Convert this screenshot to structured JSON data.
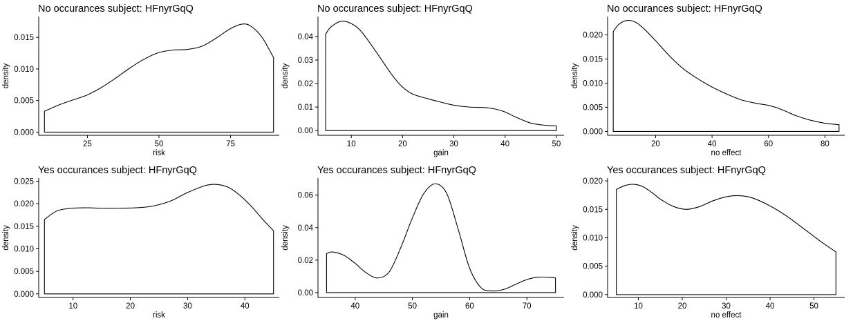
{
  "chart_data": [
    {
      "type": "area",
      "title": "No occurances subject:  HFnyrGqQ",
      "xlabel": "risk",
      "ylabel": "density",
      "xlim": [
        8,
        92
      ],
      "ylim": [
        -0.0005,
        0.0183
      ],
      "x_ticks": [
        25,
        50,
        75
      ],
      "y_ticks": [
        0.0,
        0.005,
        0.01,
        0.015
      ],
      "y_tick_labels": [
        "0.000",
        "0.005",
        "0.010",
        "0.015"
      ],
      "grid": false,
      "legend": "none",
      "x": [
        10,
        15,
        20,
        25,
        30,
        35,
        40,
        45,
        50,
        55,
        60,
        65,
        70,
        75,
        79,
        82,
        86,
        90
      ],
      "values": [
        0.0033,
        0.0043,
        0.0051,
        0.0059,
        0.0071,
        0.0086,
        0.0102,
        0.0116,
        0.0126,
        0.013,
        0.0131,
        0.0136,
        0.0149,
        0.0164,
        0.0171,
        0.0168,
        0.015,
        0.0118
      ]
    },
    {
      "type": "area",
      "title": "No occurances subject:  HFnyrGqQ",
      "xlabel": "gain",
      "ylabel": "density",
      "xlim": [
        3.5,
        51.5
      ],
      "ylim": [
        -0.002,
        0.0485
      ],
      "x_ticks": [
        10,
        20,
        30,
        40,
        50
      ],
      "y_ticks": [
        0.0,
        0.01,
        0.02,
        0.03,
        0.04
      ],
      "y_tick_labels": [
        "0.00",
        "0.01",
        "0.02",
        "0.03",
        "0.04"
      ],
      "grid": false,
      "legend": "none",
      "x": [
        5,
        6,
        8,
        10,
        12,
        15,
        18,
        20,
        22,
        25,
        28,
        30,
        33,
        36,
        38,
        40,
        42,
        45,
        48,
        50
      ],
      "values": [
        0.041,
        0.044,
        0.0465,
        0.0455,
        0.042,
        0.033,
        0.0235,
        0.0185,
        0.0155,
        0.0135,
        0.0118,
        0.0108,
        0.01,
        0.0098,
        0.0092,
        0.0079,
        0.0058,
        0.0032,
        0.0022,
        0.002
      ]
    },
    {
      "type": "area",
      "title": "No occurances subject:  HFnyrGqQ",
      "xlabel": "no effect",
      "ylabel": "density",
      "xlim": [
        3,
        87
      ],
      "ylim": [
        -0.0008,
        0.0238
      ],
      "x_ticks": [
        20,
        40,
        60,
        80
      ],
      "y_ticks": [
        0.0,
        0.005,
        0.01,
        0.015,
        0.02
      ],
      "y_tick_labels": [
        "0.000",
        "0.005",
        "0.010",
        "0.015",
        "0.020"
      ],
      "grid": false,
      "legend": "none",
      "x": [
        5,
        7,
        10,
        13,
        16,
        20,
        25,
        30,
        35,
        40,
        45,
        50,
        55,
        60,
        63,
        66,
        70,
        75,
        80,
        85
      ],
      "values": [
        0.0207,
        0.0222,
        0.023,
        0.0226,
        0.0212,
        0.0188,
        0.0156,
        0.0129,
        0.0109,
        0.0092,
        0.0078,
        0.0066,
        0.0059,
        0.0054,
        0.0049,
        0.0042,
        0.0032,
        0.0023,
        0.0017,
        0.0014
      ]
    },
    {
      "type": "area",
      "title": "Yes occurances subject:  HFnyrGqQ",
      "xlabel": "risk",
      "ylabel": "density",
      "xlim": [
        4,
        46
      ],
      "ylim": [
        -0.0008,
        0.0257
      ],
      "x_ticks": [
        10,
        20,
        30,
        40
      ],
      "y_ticks": [
        0.0,
        0.005,
        0.01,
        0.015,
        0.02,
        0.025
      ],
      "y_tick_labels": [
        "0.000",
        "0.005",
        "0.010",
        "0.015",
        "0.020",
        "0.025"
      ],
      "grid": false,
      "legend": "none",
      "x": [
        5,
        7,
        9,
        12,
        15,
        18,
        21,
        24,
        27,
        30,
        33,
        35,
        37,
        39,
        41,
        43,
        45
      ],
      "values": [
        0.0165,
        0.0183,
        0.0189,
        0.0191,
        0.019,
        0.019,
        0.0191,
        0.0195,
        0.0206,
        0.0225,
        0.024,
        0.0243,
        0.0237,
        0.022,
        0.0196,
        0.0167,
        0.014
      ]
    },
    {
      "type": "area",
      "title": "Yes occurances subject:  HFnyrGqQ",
      "xlabel": "gain",
      "ylabel": "density",
      "xlim": [
        33.5,
        76.5
      ],
      "ylim": [
        -0.003,
        0.0705
      ],
      "x_ticks": [
        40,
        50,
        60,
        70
      ],
      "y_ticks": [
        0.0,
        0.02,
        0.04,
        0.06
      ],
      "y_tick_labels": [
        "0.00",
        "0.02",
        "0.04",
        "0.06"
      ],
      "grid": false,
      "legend": "none",
      "x": [
        35,
        36,
        38,
        40,
        42,
        44,
        46,
        48,
        50,
        52,
        54,
        56,
        58,
        60,
        62,
        64,
        66,
        68,
        70,
        72,
        74,
        75
      ],
      "values": [
        0.024,
        0.025,
        0.023,
        0.018,
        0.012,
        0.009,
        0.013,
        0.028,
        0.046,
        0.061,
        0.067,
        0.061,
        0.039,
        0.015,
        0.003,
        0.001,
        0.002,
        0.005,
        0.008,
        0.0095,
        0.0094,
        0.009
      ]
    },
    {
      "type": "area",
      "title": "Yes occurances subject:  HFnyrGqQ",
      "xlabel": "no effect",
      "ylabel": "density",
      "xlim": [
        3,
        57
      ],
      "ylim": [
        -0.0005,
        0.0205
      ],
      "x_ticks": [
        10,
        20,
        30,
        40,
        50
      ],
      "y_ticks": [
        0.0,
        0.005,
        0.01,
        0.015,
        0.02
      ],
      "y_tick_labels": [
        "0.000",
        "0.005",
        "0.010",
        "0.015",
        "0.020"
      ],
      "grid": false,
      "legend": "none",
      "x": [
        5,
        7,
        9,
        11,
        13,
        15,
        18,
        21,
        24,
        27,
        30,
        33,
        36,
        40,
        44,
        48,
        52,
        55
      ],
      "values": [
        0.0185,
        0.0192,
        0.0194,
        0.019,
        0.018,
        0.0168,
        0.0155,
        0.015,
        0.0155,
        0.0165,
        0.0172,
        0.0174,
        0.017,
        0.0156,
        0.0137,
        0.0114,
        0.0091,
        0.0075
      ]
    }
  ]
}
